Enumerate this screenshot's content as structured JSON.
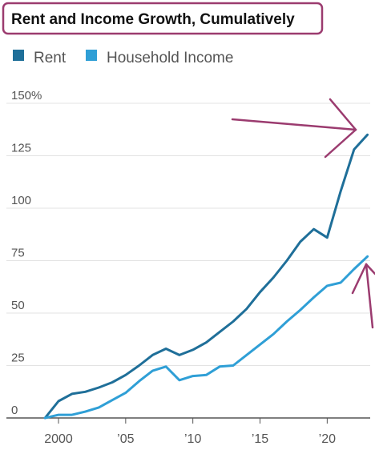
{
  "chart_data": {
    "type": "line",
    "title": "Rent and Income Growth, Cumulatively",
    "xlabel": "",
    "ylabel": "",
    "x": [
      1999,
      2000,
      2001,
      2002,
      2003,
      2004,
      2005,
      2006,
      2007,
      2008,
      2009,
      2010,
      2011,
      2012,
      2013,
      2014,
      2015,
      2016,
      2017,
      2018,
      2019,
      2020,
      2021,
      2022,
      2023
    ],
    "series": [
      {
        "name": "Rent",
        "color": "#1f6f99",
        "values": [
          0,
          8,
          11.5,
          12.5,
          14.5,
          17,
          20.5,
          25,
          30,
          33,
          30,
          32.5,
          36,
          41,
          46,
          52,
          60,
          67,
          75,
          84,
          90,
          86,
          108,
          128,
          135
        ]
      },
      {
        "name": "Household Income",
        "color": "#2f9fd6",
        "values": [
          0,
          1.5,
          1.5,
          3,
          5,
          8.5,
          12,
          17.5,
          22.5,
          24.5,
          18,
          20,
          20.5,
          24.5,
          25,
          30,
          35,
          40,
          46,
          51.5,
          57.5,
          63,
          64.5,
          71,
          77
        ]
      }
    ],
    "xlim": [
      1996.6,
      2023.2
    ],
    "ylim": [
      0,
      150
    ],
    "yticks": [
      0,
      25,
      50,
      75,
      100,
      125,
      150
    ],
    "ytick_labels": [
      "0",
      "25",
      "50",
      "75",
      "100",
      "125",
      "150%"
    ],
    "xticks": [
      2000,
      2005,
      2010,
      2015,
      2020
    ],
    "xtick_labels": [
      "2000",
      "’05",
      "’10",
      "’15",
      "’20"
    ],
    "grid": true,
    "legend_position": "top-left",
    "annotation_color": "#9b3b6f",
    "annotations": [
      "arrow pointing at Rent end value",
      "arrow pointing at Household Income end value"
    ]
  }
}
